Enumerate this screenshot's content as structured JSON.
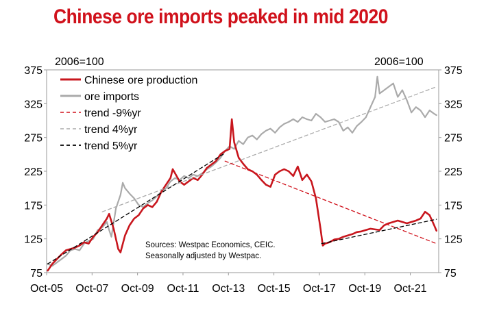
{
  "title": "Chinese ore imports peaked in mid 2020",
  "chart_data": {
    "type": "line",
    "left_axis_unit": "2006=100",
    "right_axis_unit": "2006=100",
    "ylim": [
      75,
      375
    ],
    "yticks": [
      "375",
      "325",
      "275",
      "225",
      "175",
      "125",
      "75"
    ],
    "ytick_values": [
      375,
      325,
      275,
      225,
      175,
      125,
      75
    ],
    "xlim": [
      2005.75,
      2023.0
    ],
    "xticks": [
      "Oct-05",
      "Oct-07",
      "Oct-09",
      "Oct-11",
      "Oct-13",
      "Oct-15",
      "Oct-17",
      "Oct-19",
      "Oct-21"
    ],
    "xtick_values": [
      2005.75,
      2007.75,
      2009.75,
      2011.75,
      2013.75,
      2015.75,
      2017.75,
      2019.75,
      2021.75
    ],
    "legend": [
      "Chinese ore production",
      "ore imports",
      "trend -9%yr",
      "trend 4%yr",
      "trend 5%yr"
    ],
    "series": [
      {
        "name": "Chinese ore production",
        "color": "#c8161d",
        "style": "solid",
        "points": [
          [
            2005.8,
            78
          ],
          [
            2006.0,
            88
          ],
          [
            2006.2,
            95
          ],
          [
            2006.4,
            102
          ],
          [
            2006.6,
            108
          ],
          [
            2006.8,
            110
          ],
          [
            2007.0,
            112
          ],
          [
            2007.2,
            115
          ],
          [
            2007.4,
            120
          ],
          [
            2007.6,
            118
          ],
          [
            2007.8,
            128
          ],
          [
            2008.0,
            135
          ],
          [
            2008.2,
            145
          ],
          [
            2008.4,
            155
          ],
          [
            2008.5,
            162
          ],
          [
            2008.7,
            140
          ],
          [
            2008.9,
            110
          ],
          [
            2009.0,
            105
          ],
          [
            2009.2,
            130
          ],
          [
            2009.4,
            145
          ],
          [
            2009.6,
            155
          ],
          [
            2009.8,
            160
          ],
          [
            2010.0,
            170
          ],
          [
            2010.2,
            175
          ],
          [
            2010.4,
            172
          ],
          [
            2010.6,
            180
          ],
          [
            2010.8,
            195
          ],
          [
            2011.0,
            205
          ],
          [
            2011.2,
            215
          ],
          [
            2011.3,
            228
          ],
          [
            2011.4,
            222
          ],
          [
            2011.6,
            210
          ],
          [
            2011.8,
            205
          ],
          [
            2012.0,
            210
          ],
          [
            2012.2,
            215
          ],
          [
            2012.4,
            212
          ],
          [
            2012.6,
            220
          ],
          [
            2012.8,
            230
          ],
          [
            2013.0,
            235
          ],
          [
            2013.2,
            240
          ],
          [
            2013.4,
            250
          ],
          [
            2013.6,
            255
          ],
          [
            2013.8,
            258
          ],
          [
            2013.9,
            302
          ],
          [
            2014.0,
            268
          ],
          [
            2014.2,
            245
          ],
          [
            2014.4,
            236
          ],
          [
            2014.6,
            228
          ],
          [
            2014.8,
            225
          ],
          [
            2015.0,
            220
          ],
          [
            2015.2,
            212
          ],
          [
            2015.4,
            205
          ],
          [
            2015.6,
            202
          ],
          [
            2015.8,
            220
          ],
          [
            2016.0,
            225
          ],
          [
            2016.2,
            228
          ],
          [
            2016.4,
            225
          ],
          [
            2016.6,
            218
          ],
          [
            2016.8,
            232
          ],
          [
            2017.0,
            212
          ],
          [
            2017.2,
            220
          ],
          [
            2017.4,
            210
          ],
          [
            2017.6,
            185
          ],
          [
            2017.8,
            140
          ],
          [
            2017.9,
            115
          ],
          [
            2018.0,
            118
          ],
          [
            2018.2,
            120
          ],
          [
            2018.4,
            124
          ],
          [
            2018.6,
            125
          ],
          [
            2018.8,
            128
          ],
          [
            2019.0,
            130
          ],
          [
            2019.2,
            132
          ],
          [
            2019.4,
            135
          ],
          [
            2019.6,
            136
          ],
          [
            2019.8,
            138
          ],
          [
            2020.0,
            140
          ],
          [
            2020.2,
            139
          ],
          [
            2020.4,
            138
          ],
          [
            2020.6,
            145
          ],
          [
            2020.8,
            148
          ],
          [
            2021.0,
            150
          ],
          [
            2021.2,
            152
          ],
          [
            2021.4,
            150
          ],
          [
            2021.6,
            148
          ],
          [
            2021.8,
            150
          ],
          [
            2022.0,
            152
          ],
          [
            2022.2,
            155
          ],
          [
            2022.4,
            165
          ],
          [
            2022.6,
            160
          ],
          [
            2022.8,
            145
          ],
          [
            2022.9,
            137
          ]
        ]
      },
      {
        "name": "ore imports",
        "color": "#aaaaaa",
        "style": "solid",
        "points": [
          [
            2005.8,
            88
          ],
          [
            2006.0,
            85
          ],
          [
            2006.2,
            90
          ],
          [
            2006.4,
            95
          ],
          [
            2006.6,
            100
          ],
          [
            2006.8,
            108
          ],
          [
            2007.0,
            110
          ],
          [
            2007.2,
            108
          ],
          [
            2007.4,
            118
          ],
          [
            2007.6,
            122
          ],
          [
            2007.8,
            125
          ],
          [
            2008.0,
            138
          ],
          [
            2008.2,
            142
          ],
          [
            2008.4,
            150
          ],
          [
            2008.5,
            138
          ],
          [
            2008.6,
            128
          ],
          [
            2008.8,
            170
          ],
          [
            2009.0,
            190
          ],
          [
            2009.1,
            208
          ],
          [
            2009.2,
            200
          ],
          [
            2009.4,
            192
          ],
          [
            2009.6,
            185
          ],
          [
            2009.8,
            175
          ],
          [
            2010.0,
            172
          ],
          [
            2010.2,
            178
          ],
          [
            2010.4,
            182
          ],
          [
            2010.6,
            188
          ],
          [
            2010.8,
            195
          ],
          [
            2011.0,
            200
          ],
          [
            2011.2,
            210
          ],
          [
            2011.4,
            215
          ],
          [
            2011.6,
            212
          ],
          [
            2011.8,
            218
          ],
          [
            2012.0,
            215
          ],
          [
            2012.2,
            220
          ],
          [
            2012.4,
            218
          ],
          [
            2012.6,
            222
          ],
          [
            2012.8,
            228
          ],
          [
            2013.0,
            232
          ],
          [
            2013.2,
            238
          ],
          [
            2013.4,
            245
          ],
          [
            2013.6,
            255
          ],
          [
            2013.8,
            262
          ],
          [
            2014.0,
            258
          ],
          [
            2014.2,
            270
          ],
          [
            2014.4,
            265
          ],
          [
            2014.6,
            275
          ],
          [
            2014.8,
            278
          ],
          [
            2015.0,
            272
          ],
          [
            2015.2,
            280
          ],
          [
            2015.4,
            285
          ],
          [
            2015.6,
            288
          ],
          [
            2015.8,
            282
          ],
          [
            2016.0,
            290
          ],
          [
            2016.2,
            295
          ],
          [
            2016.4,
            298
          ],
          [
            2016.6,
            302
          ],
          [
            2016.8,
            298
          ],
          [
            2017.0,
            305
          ],
          [
            2017.2,
            302
          ],
          [
            2017.4,
            300
          ],
          [
            2017.6,
            310
          ],
          [
            2017.8,
            305
          ],
          [
            2018.0,
            298
          ],
          [
            2018.2,
            300
          ],
          [
            2018.4,
            302
          ],
          [
            2018.6,
            298
          ],
          [
            2018.8,
            285
          ],
          [
            2019.0,
            290
          ],
          [
            2019.2,
            282
          ],
          [
            2019.4,
            292
          ],
          [
            2019.6,
            298
          ],
          [
            2019.8,
            305
          ],
          [
            2020.0,
            320
          ],
          [
            2020.2,
            335
          ],
          [
            2020.3,
            365
          ],
          [
            2020.4,
            340
          ],
          [
            2020.6,
            345
          ],
          [
            2020.8,
            350
          ],
          [
            2021.0,
            355
          ],
          [
            2021.2,
            335
          ],
          [
            2021.4,
            345
          ],
          [
            2021.6,
            330
          ],
          [
            2021.8,
            312
          ],
          [
            2022.0,
            320
          ],
          [
            2022.2,
            315
          ],
          [
            2022.4,
            305
          ],
          [
            2022.6,
            315
          ],
          [
            2022.8,
            310
          ],
          [
            2022.9,
            308
          ]
        ]
      },
      {
        "name": "trend -9%yr",
        "color": "#d0111b",
        "style": "dashed",
        "points": [
          [
            2013.6,
            240
          ],
          [
            2022.9,
            118
          ]
        ]
      },
      {
        "name": "trend 4%yr",
        "color": "#aaaaaa",
        "style": "dashed",
        "points": [
          [
            2008.2,
            165
          ],
          [
            2022.9,
            350
          ]
        ]
      },
      {
        "name": "trend 5%yr",
        "color": "#000000",
        "style": "dashed",
        "points": [
          [
            2017.85,
            118
          ],
          [
            2022.9,
            154
          ]
        ]
      },
      {
        "name": "",
        "color": "#000000",
        "style": "dashed",
        "points": [
          [
            2005.8,
            88
          ],
          [
            2013.6,
            252
          ]
        ]
      }
    ],
    "annotation": [
      "Sources: Westpac Economics, CEIC.",
      "Seasonally adjusted by Westpac."
    ]
  }
}
